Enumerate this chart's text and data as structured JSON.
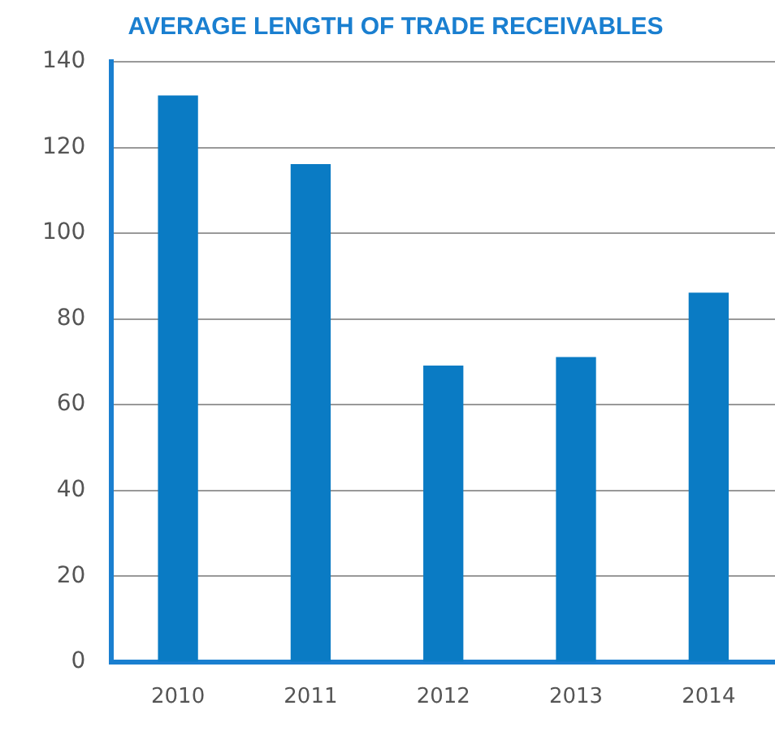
{
  "chart_data": {
    "type": "bar",
    "title": "AVERAGE LENGTH OF TRADE RECEIVABLES",
    "categories": [
      "2010",
      "2011",
      "2012",
      "2013",
      "2014"
    ],
    "values": [
      132,
      116,
      69,
      71,
      86
    ],
    "color": "#0a7bc4",
    "ylim": [
      0,
      140
    ],
    "yticks": [
      0,
      20,
      40,
      60,
      80,
      100,
      120,
      140
    ],
    "grid": "y",
    "legend": false
  }
}
